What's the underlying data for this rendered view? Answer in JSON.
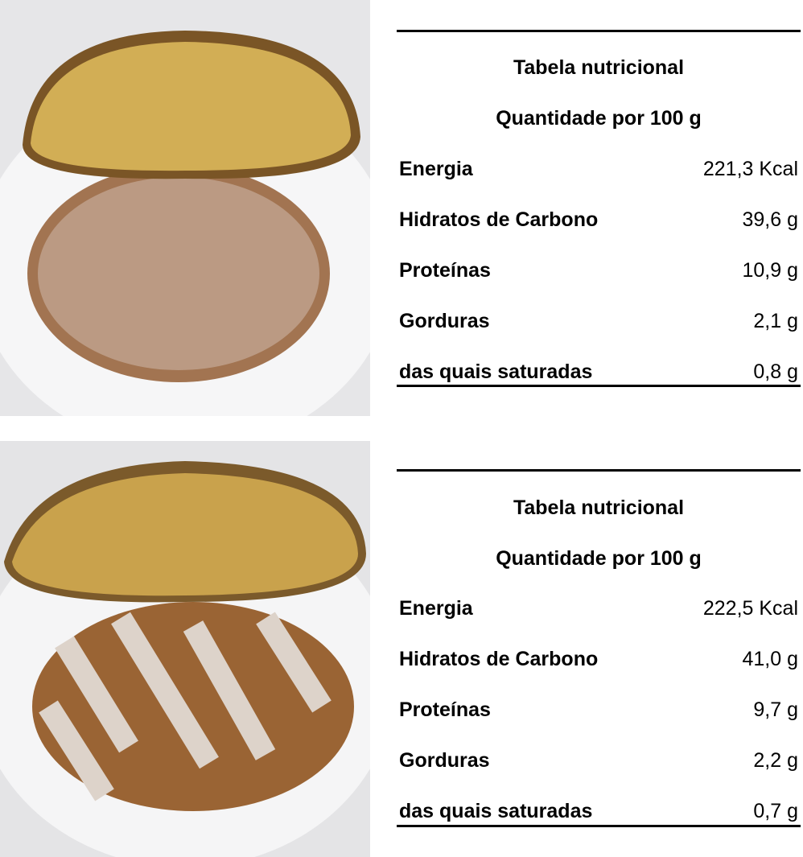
{
  "panels": [
    {
      "table": {
        "title": "Tabela nutricional",
        "subtitle": "Quantidade por 100 g",
        "rows": [
          [
            "Energia",
            "221,3 Kcal"
          ],
          [
            "Hidratos de Carbono",
            "39,6 g"
          ],
          [
            "Proteínas",
            "10,9 g"
          ],
          [
            "Gorduras",
            "2,1 g"
          ],
          [
            "das quais saturadas",
            "0,8 g"
          ]
        ]
      }
    },
    {
      "table": {
        "title": "Tabela nutricional",
        "subtitle": "Quantidade por 100 g",
        "rows": [
          [
            "Energia",
            "222,5 Kcal"
          ],
          [
            "Hidratos de Carbono",
            "41,0 g"
          ],
          [
            "Proteínas",
            "9,7 g"
          ],
          [
            "Gorduras",
            "2,2 g"
          ],
          [
            "das quais saturadas",
            "0,7 g"
          ]
        ]
      }
    }
  ]
}
